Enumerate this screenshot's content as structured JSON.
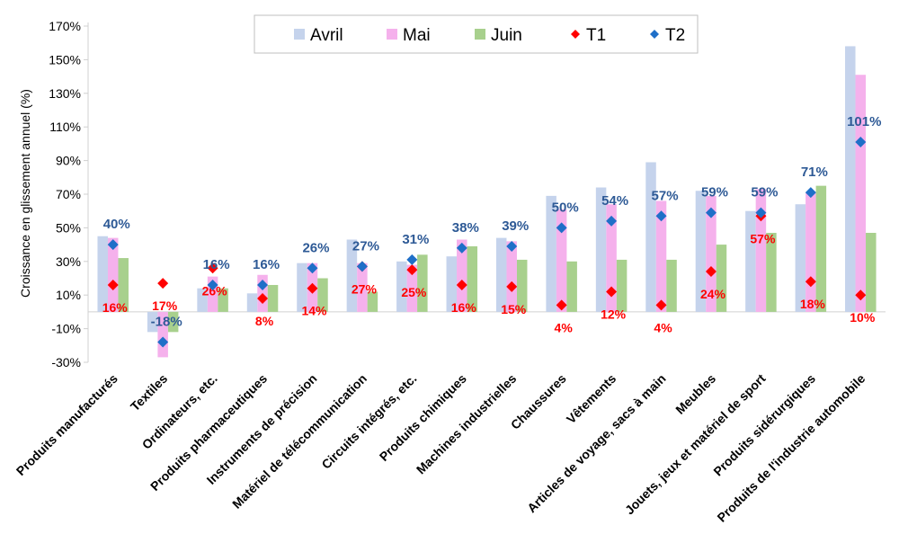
{
  "chart_data": {
    "type": "bar",
    "ylabel": "Croissance en glissement annuel (%)",
    "ylim": [
      -30,
      170
    ],
    "yticks": [
      -30,
      -10,
      10,
      30,
      50,
      70,
      90,
      110,
      130,
      150,
      170
    ],
    "ytick_labels": [
      "-30%",
      "-10%",
      "10%",
      "30%",
      "50%",
      "70%",
      "90%",
      "110%",
      "130%",
      "150%",
      "170%"
    ],
    "categories": [
      "Produits manufacturés",
      "Textiles",
      "Ordinateurs, etc.",
      "Produits pharmaceutiques",
      "Instruments de précision",
      "Matériel de télécommunication",
      "Circuits intégrés, etc.",
      "Produits chimiques",
      "Machines industrielles",
      "Chaussures",
      "Vêtements",
      "Articles de voyage, sacs à main",
      "Meubles",
      "Jouets, jeux et matériel de sport",
      "Produits sidérurgiques",
      "Produits de l'industrie automobile"
    ],
    "bar_series": [
      {
        "name": "Avril",
        "color": "#c5d3ec",
        "values": [
          45,
          -12,
          14,
          11,
          29,
          43,
          30,
          33,
          44,
          69,
          74,
          89,
          72,
          60,
          64,
          158
        ]
      },
      {
        "name": "Mai",
        "color": "#f5b1ec",
        "values": [
          44,
          -27,
          21,
          22,
          29,
          29,
          28,
          43,
          42,
          61,
          64,
          66,
          69,
          73,
          71,
          141
        ]
      },
      {
        "name": "Juin",
        "color": "#a8d08d",
        "values": [
          32,
          -12,
          14,
          16,
          20,
          12,
          34,
          39,
          31,
          30,
          31,
          31,
          40,
          47,
          75,
          47
        ]
      }
    ],
    "marker_series": [
      {
        "name": "T1",
        "color": "#ff0000",
        "values": [
          16,
          17,
          26,
          8,
          14,
          27,
          25,
          16,
          15,
          4,
          12,
          4,
          24,
          57,
          18,
          10
        ],
        "labels": [
          "16%",
          "17%",
          "26%",
          "8%",
          "14%",
          "27%",
          "25%",
          "16%",
          "15%",
          "4%",
          "12%",
          "4%",
          "24%",
          "57%",
          "18%",
          "10%"
        ]
      },
      {
        "name": "T2",
        "color": "#1f6fc8",
        "values": [
          40,
          -18,
          16,
          16,
          26,
          27,
          31,
          38,
          39,
          50,
          54,
          57,
          59,
          59,
          71,
          101
        ],
        "labels": [
          "40%",
          "-18%",
          "16%",
          "16%",
          "26%",
          "27%",
          "31%",
          "38%",
          "39%",
          "50%",
          "54%",
          "57%",
          "59%",
          "59%",
          "71%",
          "101%"
        ]
      }
    ],
    "legend": {
      "position": "top-center",
      "entries": [
        "Avril",
        "Mai",
        "Juin",
        "T1",
        "T2"
      ]
    },
    "grid": false
  }
}
